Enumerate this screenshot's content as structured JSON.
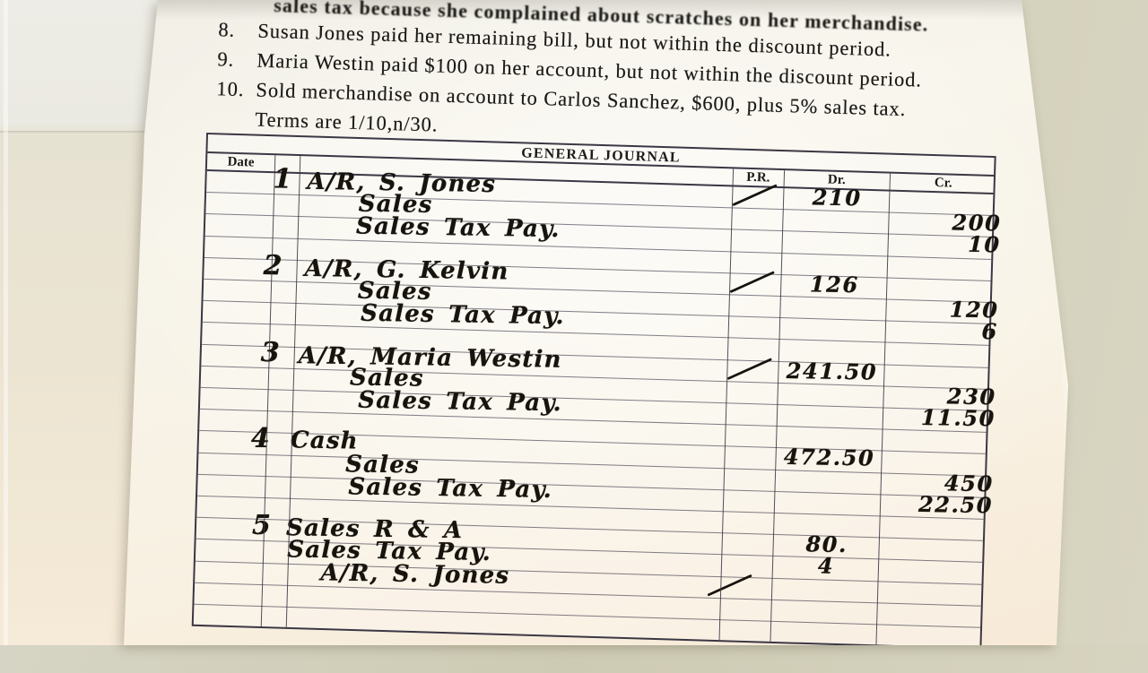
{
  "document": {
    "partial_top_line": "sales tax because she complained about scratches on her merchandise.",
    "instructions": {
      "items": [
        {
          "number": "8.",
          "text": "Susan Jones paid her remaining bill, but not within the discount period."
        },
        {
          "number": "9.",
          "text": "Maria Westin paid $100 on her account, but not within the discount period."
        },
        {
          "number": "10.",
          "text": "Sold merchandise on account to Carlos Sanchez, $600, plus 5% sales tax.",
          "continuation": "Terms are 1/10,n/30."
        }
      ]
    }
  },
  "journal": {
    "title": "GENERAL JOURNAL",
    "headers": {
      "date": "Date",
      "pr": "P.R.",
      "dr": "Dr.",
      "cr": "Cr."
    },
    "entries": [
      {
        "num": "1",
        "lines": [
          {
            "account": "A/R, S. Jones",
            "pr_check": true,
            "dr": "210",
            "cr": ""
          },
          {
            "account": "Sales",
            "pr_check": false,
            "dr": "",
            "cr": "200"
          },
          {
            "account": "Sales Tax Pay.",
            "pr_check": false,
            "dr": "",
            "cr": "10"
          }
        ]
      },
      {
        "num": "2",
        "lines": [
          {
            "account": "A/R, G. Kelvin",
            "pr_check": true,
            "dr": "126",
            "cr": ""
          },
          {
            "account": "Sales",
            "pr_check": false,
            "dr": "",
            "cr": "120"
          },
          {
            "account": "Sales Tax Pay.",
            "pr_check": false,
            "dr": "",
            "cr": "6"
          }
        ]
      },
      {
        "num": "3",
        "lines": [
          {
            "account": "A/R, Maria Westin",
            "pr_check": true,
            "dr": "241.50",
            "cr": ""
          },
          {
            "account": "Sales",
            "pr_check": false,
            "dr": "",
            "cr": "230"
          },
          {
            "account": "Sales Tax Pay.",
            "pr_check": false,
            "dr": "",
            "cr": "11.50"
          }
        ]
      },
      {
        "num": "4",
        "lines": [
          {
            "account": "Cash",
            "pr_check": false,
            "dr": "472.50",
            "cr": ""
          },
          {
            "account": "Sales",
            "pr_check": false,
            "dr": "",
            "cr": "450"
          },
          {
            "account": "Sales Tax Pay.",
            "pr_check": false,
            "dr": "",
            "cr": "22.50"
          }
        ]
      },
      {
        "num": "5",
        "lines": [
          {
            "account": "Sales R & A",
            "pr_check": false,
            "dr": "80.",
            "cr": ""
          },
          {
            "account": "Sales Tax Pay.",
            "pr_check": false,
            "dr": "4",
            "cr": ""
          },
          {
            "account": "A/R, S. Jones",
            "pr_check": true,
            "dr": "",
            "cr": ""
          }
        ]
      }
    ]
  },
  "colors": {
    "paper": "#f7f2e6",
    "desk": "#d1ceba",
    "table_line": "#3b3744",
    "ink": "#17130d",
    "print_text": "#1d1b19"
  }
}
